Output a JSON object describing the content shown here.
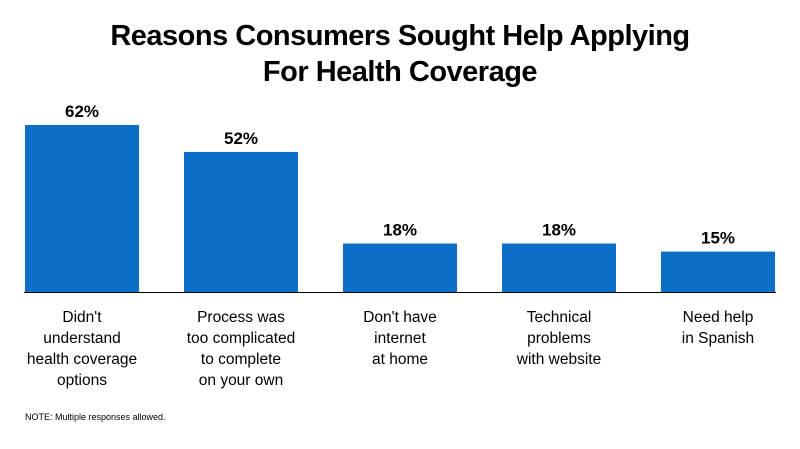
{
  "title_lines": [
    "Reasons Consumers Sought Help Applying",
    "For Health Coverage"
  ],
  "note": "NOTE: Multiple responses allowed.",
  "colors": {
    "bar": "#0B6FC7",
    "axis": "#000000"
  },
  "chart_data": {
    "type": "bar",
    "title": "Reasons Consumers Sought Help Applying For Health Coverage",
    "categories": [
      [
        "Didn't",
        "understand",
        "health coverage",
        "options"
      ],
      [
        "Process was",
        "too complicated",
        "to complete",
        "on your own"
      ],
      [
        "Don't have",
        "internet",
        "at home"
      ],
      [
        "Technical",
        "problems",
        "with website"
      ],
      [
        "Need help",
        "in Spanish"
      ]
    ],
    "values": [
      62,
      52,
      18,
      18,
      15
    ],
    "value_labels": [
      "62%",
      "52%",
      "18%",
      "18%",
      "15%"
    ],
    "ylim": [
      0,
      62
    ],
    "grid": false,
    "legend": "none"
  }
}
